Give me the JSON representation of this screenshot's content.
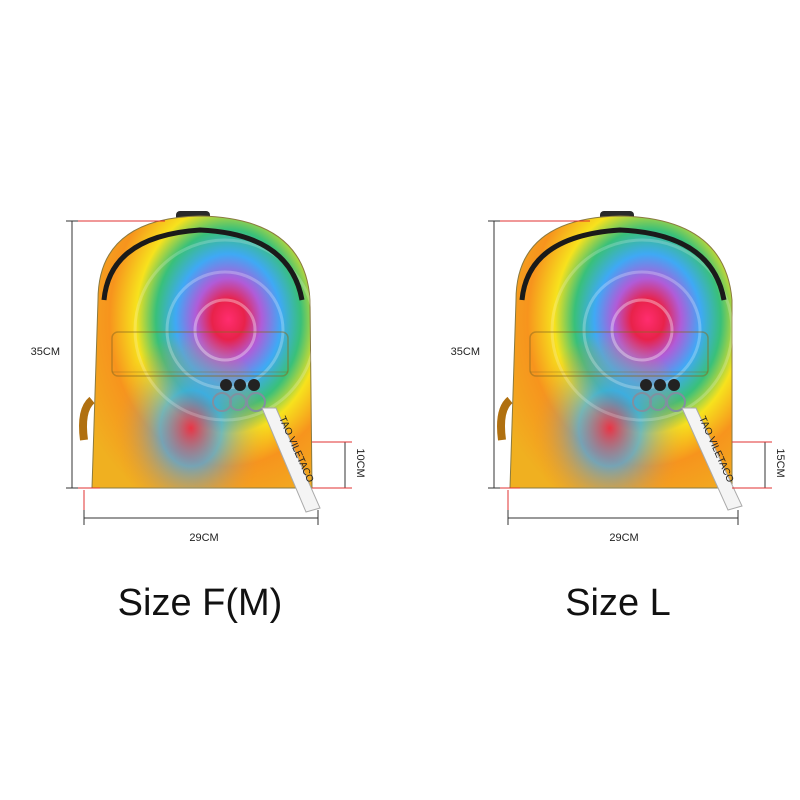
{
  "products": [
    {
      "size_title": "Size F(M)",
      "height_label": "35CM",
      "width_label": "29CM",
      "depth_label": "10CM",
      "strap_text": "TAO VILETACO"
    },
    {
      "size_title": "Size L",
      "height_label": "35CM",
      "width_label": "29CM",
      "depth_label": "15CM",
      "strap_text": "TAO VILETACO"
    }
  ],
  "colors": {
    "background": "#ffffff",
    "measure_line": "#333333",
    "measure_accent": "#e03030",
    "tie_dye": [
      "#f7e21d",
      "#f7941d",
      "#e8224a",
      "#9b59b6",
      "#3fa9f5",
      "#39c07a"
    ]
  }
}
